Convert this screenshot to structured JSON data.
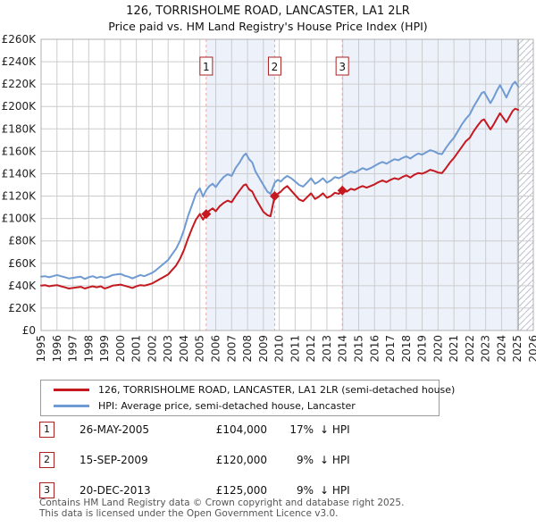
{
  "header": {
    "title": "126, TORRISHOLME ROAD, LANCASTER, LA1 2LR",
    "subtitle": "Price paid vs. HM Land Registry's House Price Index (HPI)"
  },
  "chart_data": {
    "type": "line",
    "title": "126, TORRISHOLME ROAD, LANCASTER, LA1 2LR",
    "subtitle": "Price paid vs. HM Land Registry's House Price Index (HPI)",
    "xlim": [
      1995,
      2026
    ],
    "ylim_gbp_k": [
      0,
      260
    ],
    "x_ticks": [
      1995,
      1996,
      1997,
      1998,
      1999,
      2000,
      2001,
      2002,
      2003,
      2004,
      2005,
      2006,
      2007,
      2008,
      2009,
      2010,
      2011,
      2012,
      2013,
      2014,
      2015,
      2016,
      2017,
      2018,
      2019,
      2020,
      2021,
      2022,
      2023,
      2024,
      2025,
      2026
    ],
    "y_ticks_gbp_k": [
      0,
      20,
      40,
      60,
      80,
      100,
      120,
      140,
      160,
      180,
      200,
      220,
      240,
      260
    ],
    "y_tick_prefix": "£",
    "y_tick_suffix": "K",
    "grid": true,
    "legend_position": "below",
    "background_bands": [
      {
        "from": 2005.4,
        "to": 2009.71
      },
      {
        "from": 2013.97,
        "to": 2025.05
      }
    ],
    "future_hatch_from": 2025.05,
    "series": [
      {
        "name": "HPI: Average price, semi-detached house, Lancaster",
        "color": "#6f9bd2",
        "points_year_gbp_k": [
          [
            1995,
            48
          ],
          [
            1995.25,
            48.5
          ],
          [
            1995.5,
            47.5
          ],
          [
            1995.75,
            48.5
          ],
          [
            1996,
            49.5
          ],
          [
            1996.25,
            48.5
          ],
          [
            1996.5,
            47.5
          ],
          [
            1996.75,
            46.5
          ],
          [
            1997,
            47
          ],
          [
            1997.25,
            47.5
          ],
          [
            1997.5,
            48
          ],
          [
            1997.75,
            46
          ],
          [
            1998,
            47.5
          ],
          [
            1998.25,
            48.5
          ],
          [
            1998.5,
            47
          ],
          [
            1998.75,
            48
          ],
          [
            1999,
            47
          ],
          [
            1999.25,
            48
          ],
          [
            1999.5,
            49.5
          ],
          [
            1999.75,
            50
          ],
          [
            2000,
            50.5
          ],
          [
            2000.25,
            49
          ],
          [
            2000.5,
            48
          ],
          [
            2000.75,
            46.5
          ],
          [
            2001,
            48
          ],
          [
            2001.25,
            49.5
          ],
          [
            2001.5,
            48.5
          ],
          [
            2001.75,
            50
          ],
          [
            2002,
            51.5
          ],
          [
            2002.25,
            54
          ],
          [
            2002.5,
            57
          ],
          [
            2002.75,
            60
          ],
          [
            2003,
            63
          ],
          [
            2003.25,
            68
          ],
          [
            2003.5,
            73
          ],
          [
            2003.75,
            80
          ],
          [
            2004,
            90
          ],
          [
            2004.25,
            102
          ],
          [
            2004.5,
            112
          ],
          [
            2004.75,
            122
          ],
          [
            2005,
            127
          ],
          [
            2005.2,
            119.5
          ],
          [
            2005.4,
            125.5
          ],
          [
            2005.6,
            129
          ],
          [
            2005.8,
            131
          ],
          [
            2006,
            128
          ],
          [
            2006.25,
            133
          ],
          [
            2006.5,
            137
          ],
          [
            2006.75,
            139.5
          ],
          [
            2007,
            138
          ],
          [
            2007.25,
            145
          ],
          [
            2007.5,
            150
          ],
          [
            2007.75,
            156
          ],
          [
            2007.9,
            158
          ],
          [
            2008.1,
            153
          ],
          [
            2008.3,
            150
          ],
          [
            2008.5,
            142
          ],
          [
            2008.75,
            136
          ],
          [
            2009,
            130
          ],
          [
            2009.25,
            124
          ],
          [
            2009.45,
            122
          ],
          [
            2009.71,
            132
          ],
          [
            2009.9,
            134.5
          ],
          [
            2010.1,
            133
          ],
          [
            2010.3,
            136
          ],
          [
            2010.5,
            138
          ],
          [
            2010.75,
            136
          ],
          [
            2011,
            133
          ],
          [
            2011.25,
            130
          ],
          [
            2011.5,
            128.5
          ],
          [
            2011.75,
            132
          ],
          [
            2012,
            136
          ],
          [
            2012.25,
            131
          ],
          [
            2012.5,
            133
          ],
          [
            2012.75,
            136
          ],
          [
            2013,
            132
          ],
          [
            2013.25,
            134
          ],
          [
            2013.5,
            137
          ],
          [
            2013.75,
            136
          ],
          [
            2013.97,
            137.5
          ],
          [
            2014.25,
            140
          ],
          [
            2014.5,
            142
          ],
          [
            2014.75,
            141
          ],
          [
            2015,
            143
          ],
          [
            2015.25,
            145
          ],
          [
            2015.5,
            143.5
          ],
          [
            2015.75,
            145
          ],
          [
            2016,
            147
          ],
          [
            2016.25,
            149
          ],
          [
            2016.5,
            150.5
          ],
          [
            2016.75,
            149
          ],
          [
            2017,
            151
          ],
          [
            2017.25,
            153
          ],
          [
            2017.5,
            152
          ],
          [
            2017.75,
            154
          ],
          [
            2018,
            155.5
          ],
          [
            2018.25,
            153.5
          ],
          [
            2018.5,
            156
          ],
          [
            2018.75,
            158
          ],
          [
            2019,
            157
          ],
          [
            2019.25,
            159
          ],
          [
            2019.5,
            161
          ],
          [
            2019.75,
            160
          ],
          [
            2020,
            158
          ],
          [
            2020.25,
            157.5
          ],
          [
            2020.5,
            163
          ],
          [
            2020.75,
            168
          ],
          [
            2021,
            172
          ],
          [
            2021.25,
            178
          ],
          [
            2021.5,
            184
          ],
          [
            2021.75,
            189
          ],
          [
            2022,
            193
          ],
          [
            2022.25,
            200
          ],
          [
            2022.5,
            206
          ],
          [
            2022.75,
            212
          ],
          [
            2022.9,
            213
          ],
          [
            2023.1,
            208
          ],
          [
            2023.3,
            203
          ],
          [
            2023.5,
            208
          ],
          [
            2023.7,
            214
          ],
          [
            2023.9,
            219
          ],
          [
            2024.1,
            214
          ],
          [
            2024.3,
            208
          ],
          [
            2024.5,
            214
          ],
          [
            2024.7,
            220
          ],
          [
            2024.85,
            222
          ],
          [
            2025.05,
            218
          ]
        ]
      },
      {
        "name": "126, TORRISHOLME ROAD, LANCASTER, LA1 2LR (semi-detached house)",
        "color": "#c4191f",
        "points_year_gbp_k": [
          [
            1995,
            40
          ],
          [
            1995.25,
            40.5
          ],
          [
            1995.5,
            39.5
          ],
          [
            1995.75,
            40
          ],
          [
            1996,
            40.5
          ],
          [
            1996.25,
            39.5
          ],
          [
            1996.5,
            38.5
          ],
          [
            1996.75,
            37.5
          ],
          [
            1997,
            38
          ],
          [
            1997.25,
            38.5
          ],
          [
            1997.5,
            39
          ],
          [
            1997.75,
            37.5
          ],
          [
            1998,
            38.5
          ],
          [
            1998.25,
            39.5
          ],
          [
            1998.5,
            38.5
          ],
          [
            1998.75,
            39.5
          ],
          [
            1999,
            37.5
          ],
          [
            1999.25,
            38.5
          ],
          [
            1999.5,
            40
          ],
          [
            1999.75,
            40.5
          ],
          [
            2000,
            41
          ],
          [
            2000.25,
            40
          ],
          [
            2000.5,
            39
          ],
          [
            2000.75,
            38
          ],
          [
            2001,
            39.5
          ],
          [
            2001.25,
            40.5
          ],
          [
            2001.5,
            40
          ],
          [
            2001.75,
            41
          ],
          [
            2002,
            42
          ],
          [
            2002.25,
            44
          ],
          [
            2002.5,
            46
          ],
          [
            2002.75,
            48
          ],
          [
            2003,
            50
          ],
          [
            2003.25,
            54
          ],
          [
            2003.5,
            58
          ],
          [
            2003.75,
            64
          ],
          [
            2004,
            72
          ],
          [
            2004.25,
            82
          ],
          [
            2004.5,
            91
          ],
          [
            2004.75,
            99
          ],
          [
            2005,
            104
          ],
          [
            2005.2,
            99
          ],
          [
            2005.4,
            104
          ],
          [
            2005.6,
            107
          ],
          [
            2005.8,
            109
          ],
          [
            2006,
            106.5
          ],
          [
            2006.25,
            111
          ],
          [
            2006.5,
            114
          ],
          [
            2006.75,
            116
          ],
          [
            2007,
            114.5
          ],
          [
            2007.25,
            120
          ],
          [
            2007.5,
            125
          ],
          [
            2007.75,
            129.5
          ],
          [
            2007.9,
            130.5
          ],
          [
            2008.1,
            126
          ],
          [
            2008.3,
            124
          ],
          [
            2008.5,
            118
          ],
          [
            2008.75,
            112
          ],
          [
            2009,
            106
          ],
          [
            2009.25,
            103
          ],
          [
            2009.45,
            102
          ],
          [
            2009.71,
            120
          ],
          [
            2009.9,
            122
          ],
          [
            2010.1,
            124
          ],
          [
            2010.3,
            127
          ],
          [
            2010.5,
            129
          ],
          [
            2010.75,
            125
          ],
          [
            2011,
            121
          ],
          [
            2011.25,
            117
          ],
          [
            2011.5,
            115.5
          ],
          [
            2011.75,
            119
          ],
          [
            2012,
            122.5
          ],
          [
            2012.25,
            117.5
          ],
          [
            2012.5,
            119.5
          ],
          [
            2012.75,
            122.5
          ],
          [
            2013,
            118.5
          ],
          [
            2013.25,
            120
          ],
          [
            2013.5,
            123
          ],
          [
            2013.75,
            122
          ],
          [
            2013.97,
            125
          ],
          [
            2014.25,
            124
          ],
          [
            2014.5,
            126.5
          ],
          [
            2014.75,
            125.5
          ],
          [
            2015,
            127.5
          ],
          [
            2015.25,
            129
          ],
          [
            2015.5,
            127.5
          ],
          [
            2015.75,
            129
          ],
          [
            2016,
            130.5
          ],
          [
            2016.25,
            132.5
          ],
          [
            2016.5,
            134
          ],
          [
            2016.75,
            132.5
          ],
          [
            2017,
            134.5
          ],
          [
            2017.25,
            136
          ],
          [
            2017.5,
            135
          ],
          [
            2017.75,
            137
          ],
          [
            2018,
            138.5
          ],
          [
            2018.25,
            136.5
          ],
          [
            2018.5,
            139
          ],
          [
            2018.75,
            140.5
          ],
          [
            2019,
            140
          ],
          [
            2019.25,
            141.5
          ],
          [
            2019.5,
            143.5
          ],
          [
            2019.75,
            142.5
          ],
          [
            2020,
            141
          ],
          [
            2020.25,
            140.5
          ],
          [
            2020.5,
            145
          ],
          [
            2020.75,
            150
          ],
          [
            2021,
            154
          ],
          [
            2021.25,
            159
          ],
          [
            2021.5,
            164
          ],
          [
            2021.75,
            169
          ],
          [
            2022,
            172
          ],
          [
            2022.25,
            178
          ],
          [
            2022.5,
            183
          ],
          [
            2022.75,
            187.5
          ],
          [
            2022.9,
            188.5
          ],
          [
            2023.1,
            184
          ],
          [
            2023.3,
            179.5
          ],
          [
            2023.5,
            184
          ],
          [
            2023.7,
            189
          ],
          [
            2023.9,
            194
          ],
          [
            2024.1,
            190
          ],
          [
            2024.3,
            186
          ],
          [
            2024.5,
            191
          ],
          [
            2024.7,
            196
          ],
          [
            2024.85,
            198
          ],
          [
            2025.05,
            197
          ]
        ]
      }
    ],
    "sale_markers": [
      {
        "label": "1",
        "year": 2005.4,
        "price_gbp_k": 104
      },
      {
        "label": "2",
        "year": 2009.71,
        "price_gbp_k": 120
      },
      {
        "label": "3",
        "year": 2013.97,
        "price_gbp_k": 125
      }
    ],
    "colors": {
      "band": "#edf1fa",
      "grid": "#cccccc",
      "border": "#b0b0b0",
      "sale_line": "#f2a0a0",
      "marker_box_border": "#aa2222",
      "hatch": "#b9c0cc",
      "hatch_edge": "#8f8f8f",
      "tick_text": "#222222"
    }
  },
  "legend": {
    "items": [
      {
        "label": "126, TORRISHOLME ROAD, LANCASTER, LA1 2LR (semi-detached house)",
        "color": "#c4191f"
      },
      {
        "label": "HPI: Average price, semi-detached house, Lancaster",
        "color": "#6f9bd2"
      }
    ]
  },
  "transactions": [
    {
      "num": "1",
      "date": "26-MAY-2005",
      "price": "£104,000",
      "pct": "17%",
      "suffix": "↓ HPI"
    },
    {
      "num": "2",
      "date": "15-SEP-2009",
      "price": "£120,000",
      "pct": "9%",
      "suffix": "↓ HPI"
    },
    {
      "num": "3",
      "date": "20-DEC-2013",
      "price": "£125,000",
      "pct": "9%",
      "suffix": "↓ HPI"
    }
  ],
  "footer": {
    "line1": "Contains HM Land Registry data © Crown copyright and database right 2025.",
    "line2": "This data is licensed under the Open Government Licence v3.0."
  }
}
